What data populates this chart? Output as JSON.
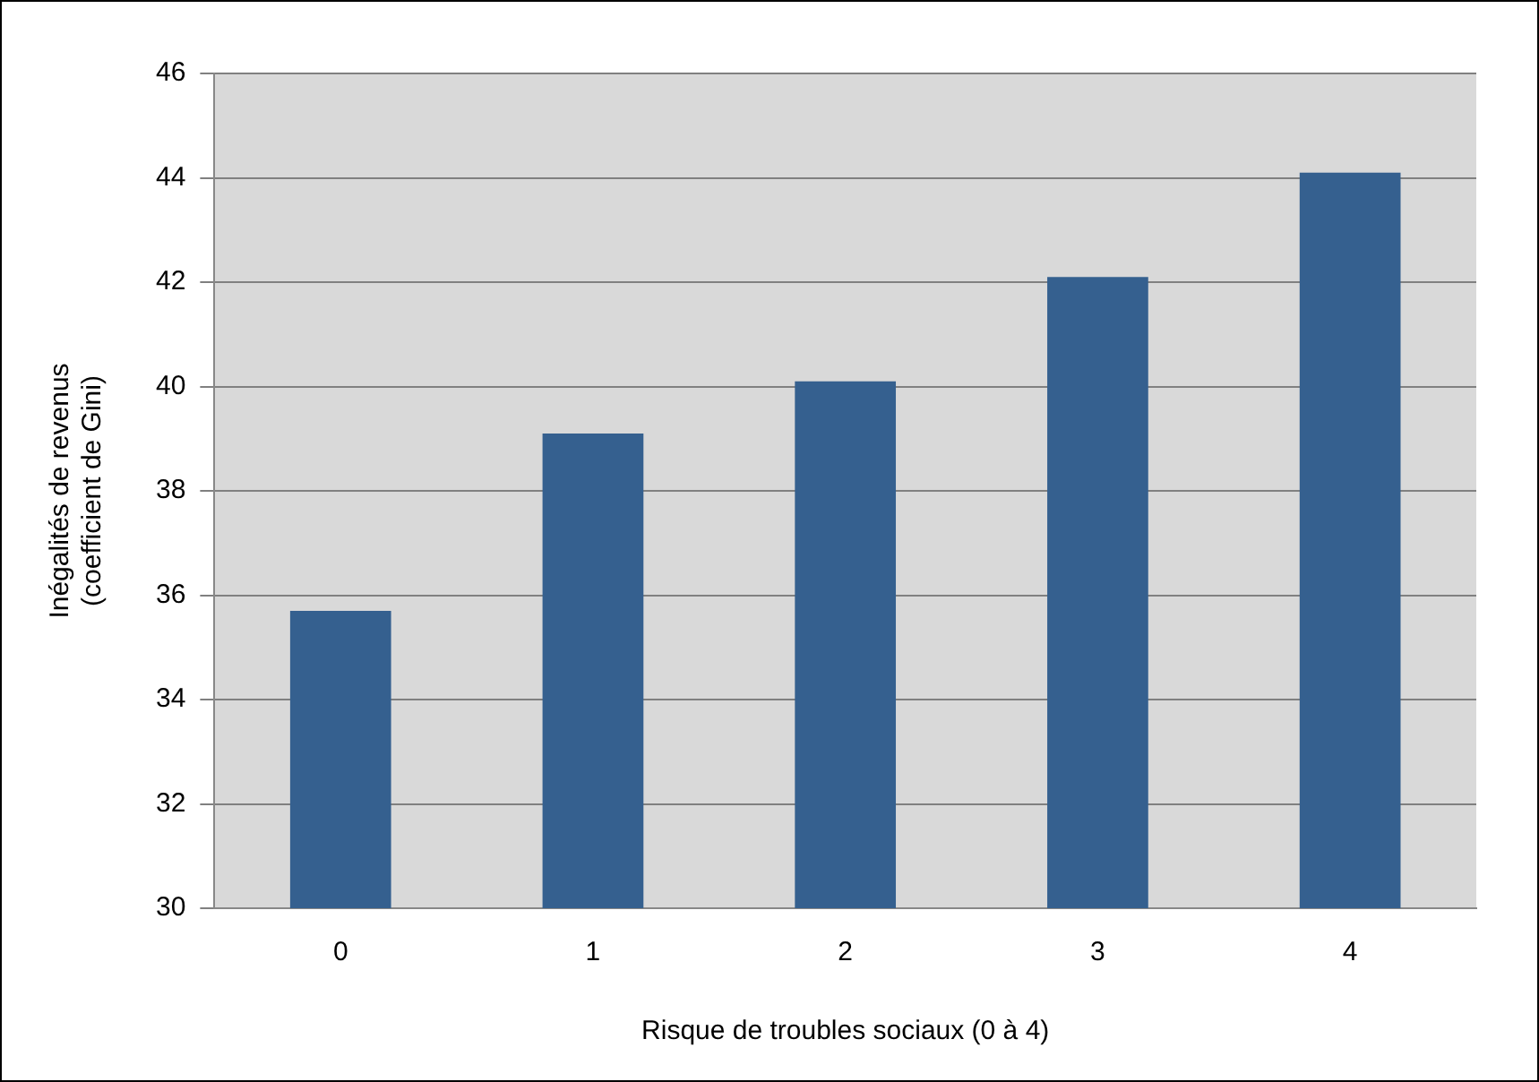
{
  "chart_data": {
    "type": "bar",
    "xlabel": "Risque de troubles sociaux (0 à 4)",
    "ylabel": "Inégalités de revenus (coefficient de Gini)",
    "categories": [
      "0",
      "1",
      "2",
      "3",
      "4"
    ],
    "values": [
      35.7,
      39.1,
      40.1,
      42.1,
      44.1
    ],
    "color": "#35608f",
    "ylim": [
      30,
      46
    ],
    "yticks": [
      30,
      32,
      34,
      36,
      38,
      40,
      42,
      44,
      46
    ],
    "grid": "y"
  }
}
